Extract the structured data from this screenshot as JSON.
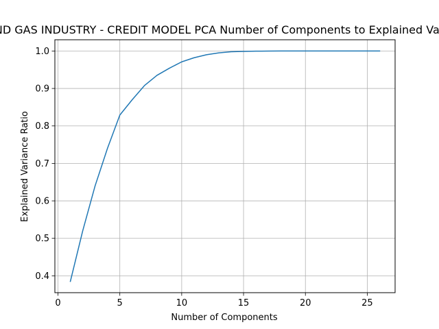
{
  "chart_data": {
    "type": "line",
    "title": "OIL AND GAS INDUSTRY - CREDIT MODEL PCA Number of Components to Explained Variance",
    "xlabel": "Number of Components",
    "ylabel": "Explained Variance Ratio",
    "xlim": [
      -0.25,
      27.25
    ],
    "ylim": [
      0.355,
      1.03
    ],
    "x_ticks": [
      0,
      5,
      10,
      15,
      20,
      25
    ],
    "y_ticks": [
      0.4,
      0.5,
      0.6,
      0.7,
      0.8,
      0.9,
      1.0
    ],
    "x_tick_labels": [
      "0",
      "5",
      "10",
      "15",
      "20",
      "25"
    ],
    "y_tick_labels": [
      "0.4",
      "0.5",
      "0.6",
      "0.7",
      "0.8",
      "0.9",
      "1.0"
    ],
    "grid": true,
    "series_color": "#1f77b4",
    "series": [
      {
        "x": [
          1,
          2,
          3,
          4,
          5,
          6,
          7,
          8,
          9,
          10,
          11,
          12,
          13,
          14,
          15,
          16,
          17,
          18,
          19,
          20,
          21,
          22,
          23,
          24,
          25,
          26
        ],
        "values": [
          0.385,
          0.52,
          0.64,
          0.74,
          0.829,
          0.87,
          0.908,
          0.935,
          0.954,
          0.971,
          0.982,
          0.99,
          0.995,
          0.998,
          0.999,
          0.9995,
          0.9998,
          1.0,
          1.0,
          1.0,
          1.0,
          1.0,
          1.0,
          1.0,
          1.0,
          1.0
        ]
      }
    ]
  }
}
